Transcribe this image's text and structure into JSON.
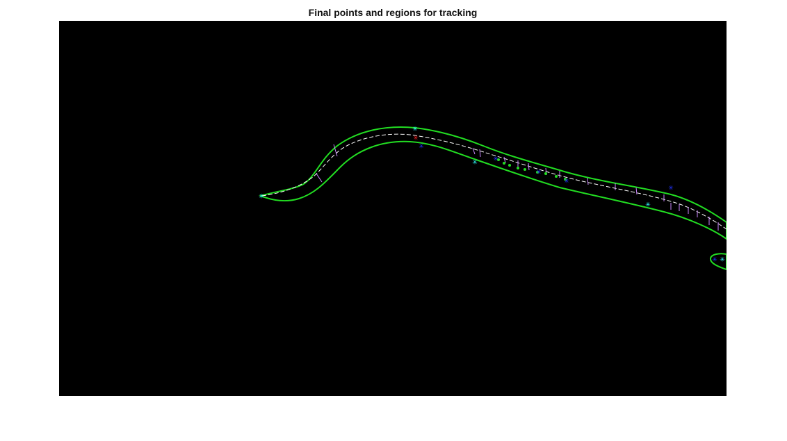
{
  "figure": {
    "title": "Final points and regions for tracking"
  },
  "image": {
    "background_color": "#000000",
    "boundary_color": "#22dd22",
    "skeleton_color": "#ffffff",
    "skeleton_tick_color": "#cc88ff",
    "marker_colors": {
      "cyan": "#33ffff",
      "blue": "#2233ff",
      "red": "#ff2222"
    },
    "marker_symbol": "*"
  }
}
